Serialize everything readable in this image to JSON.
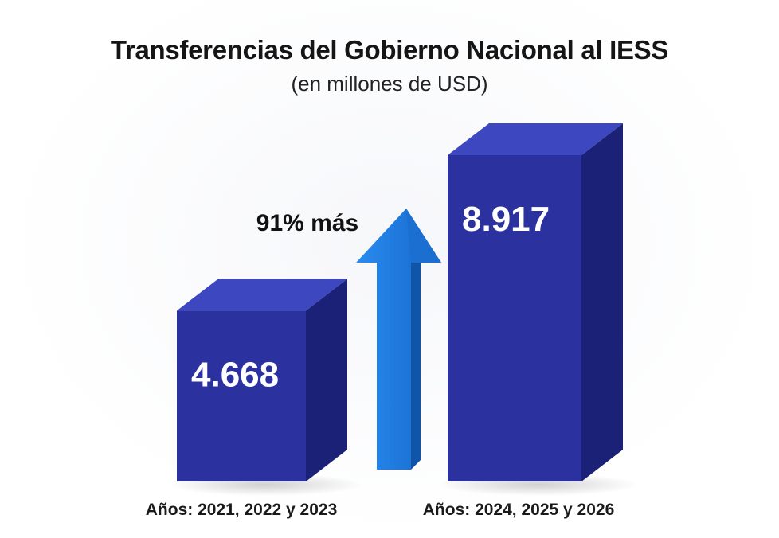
{
  "chart_data": {
    "type": "bar",
    "title": "Transferencias del Gobierno Nacional al IESS",
    "subtitle": "(en millones de USD)",
    "categories": [
      "Años: 2021, 2022 y 2023",
      "Años: 2024, 2025 y 2026"
    ],
    "values": [
      4668,
      8917
    ],
    "value_labels": [
      "4.668",
      "8.917"
    ],
    "annotation": "91% más",
    "ylim": [
      0,
      8917
    ],
    "grid": false,
    "legend": "none",
    "colors": {
      "bar_front": "#2b32a0",
      "bar_top": "#3d47c0",
      "bar_side": "#1c2178",
      "arrow": "#1f7fe6"
    }
  }
}
